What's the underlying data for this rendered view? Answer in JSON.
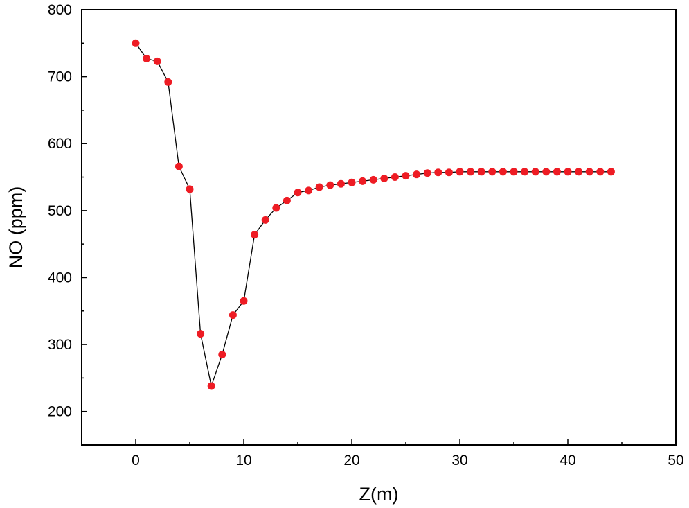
{
  "chart_data": {
    "type": "line",
    "title": "",
    "xlabel": "Z(m)",
    "ylabel": "NO (ppm)",
    "xlim": [
      -5,
      50
    ],
    "ylim": [
      150,
      800
    ],
    "xticks": [
      0,
      10,
      20,
      30,
      40,
      50
    ],
    "yticks": [
      200,
      300,
      400,
      500,
      600,
      700,
      800
    ],
    "grid": false,
    "legend": "none",
    "marker_color": "#ee1c24",
    "line_color": "#000000",
    "series": [
      {
        "x": [
          0,
          1,
          2,
          3,
          4,
          5,
          6,
          7,
          8,
          9,
          10,
          11,
          12,
          13,
          14,
          15,
          16,
          17,
          18,
          19,
          20,
          21,
          22,
          23,
          24,
          25,
          26,
          27,
          28,
          29,
          30,
          31,
          32,
          33,
          34,
          35,
          36,
          37,
          38,
          39,
          40,
          41,
          42,
          43,
          44
        ],
        "y": [
          750,
          727,
          723,
          692,
          566,
          532,
          316,
          238,
          285,
          344,
          365,
          464,
          486,
          504,
          515,
          527,
          530,
          535,
          538,
          540,
          542,
          544,
          546,
          548,
          550,
          552,
          554,
          556,
          557,
          557,
          558,
          558,
          558,
          558,
          558,
          558,
          558,
          558,
          558,
          558,
          558,
          558,
          558,
          558,
          558
        ]
      }
    ]
  }
}
